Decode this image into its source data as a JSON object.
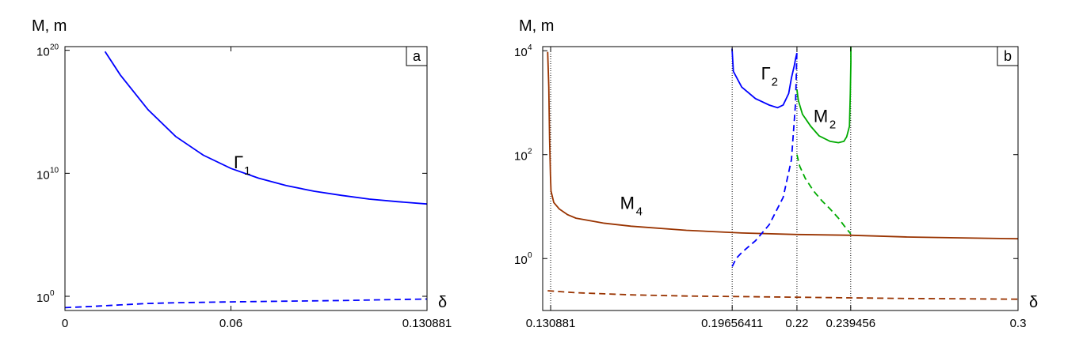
{
  "chart_data": [
    {
      "panel": "a",
      "type": "line",
      "y_scale": "log",
      "ylabel": "M, m",
      "xlabel": "δ",
      "xlim": [
        0,
        0.130881
      ],
      "ylim": [
        0.07,
        2e+20
      ],
      "x_ticks": [
        {
          "value": 0,
          "label": "0"
        },
        {
          "value": 0.06,
          "label": "0.06"
        },
        {
          "value": 0.130881,
          "label": "0.130881"
        }
      ],
      "y_ticks": [
        {
          "value": 1,
          "base": "10",
          "exp": "0"
        },
        {
          "value": 10000000000.0,
          "base": "10",
          "exp": "10"
        },
        {
          "value": 1e+20,
          "base": "10",
          "exp": "20"
        }
      ],
      "series": [
        {
          "label": "Γ",
          "sub": "1",
          "color": "#0000ff",
          "style": "solid",
          "x": [
            0.0145,
            0.02,
            0.03,
            0.04,
            0.05,
            0.06,
            0.07,
            0.08,
            0.09,
            0.1,
            0.11,
            0.12,
            0.130881
          ],
          "y": [
            8e+19,
            1e+18,
            1500000000000000.0,
            10000000000000.0,
            300000000000.0,
            25000000000.0,
            4000000000.0,
            1000000000.0,
            350000000.0,
            160000000.0,
            80000000.0,
            50000000.0,
            32000000.0
          ]
        },
        {
          "label": "",
          "sub": "",
          "color": "#0000ff",
          "style": "dashed",
          "x": [
            0,
            0.01,
            0.02,
            0.03,
            0.04,
            0.06,
            0.08,
            0.1,
            0.12,
            0.130881
          ],
          "y": [
            0.12,
            0.15,
            0.2,
            0.26,
            0.3,
            0.35,
            0.4,
            0.45,
            0.55,
            0.6
          ]
        }
      ],
      "labels_at": [
        {
          "text": "Γ",
          "sub": "1",
          "x": 0.061,
          "y": 25000000000.0
        }
      ]
    },
    {
      "panel": "b",
      "type": "line",
      "y_scale": "log",
      "ylabel": "M, m",
      "xlabel": "δ",
      "xlim": [
        0.128,
        0.3
      ],
      "ylim": [
        0.1,
        12000
      ],
      "x_ticks": [
        {
          "value": 0.130881,
          "label": "0.130881"
        },
        {
          "value": 0.19656411,
          "label": "0.19656411"
        },
        {
          "value": 0.22,
          "label": "0.22"
        },
        {
          "value": 0.239456,
          "label": "0.239456"
        },
        {
          "value": 0.3,
          "label": "0.3"
        }
      ],
      "y_ticks": [
        {
          "value": 1,
          "base": "10",
          "exp": "0"
        },
        {
          "value": 100,
          "base": "10",
          "exp": "2"
        },
        {
          "value": 10000,
          "base": "10",
          "exp": "4"
        }
      ],
      "vlines": [
        0.130881,
        0.19656411,
        0.22,
        0.239456
      ],
      "series": [
        {
          "label": "M",
          "sub": "4",
          "color": "#993300",
          "style": "solid",
          "x": [
            0.1298,
            0.1302,
            0.1305,
            0.1308,
            0.131,
            0.132,
            0.134,
            0.137,
            0.14,
            0.15,
            0.16,
            0.18,
            0.2,
            0.22,
            0.24,
            0.26,
            0.28,
            0.3
          ],
          "y": [
            9500,
            2000,
            200,
            40,
            20,
            12,
            9,
            7,
            6,
            4.8,
            4.2,
            3.5,
            3.1,
            2.9,
            2.8,
            2.6,
            2.5,
            2.4
          ]
        },
        {
          "label": "",
          "sub": "",
          "color": "#993300",
          "style": "dashed",
          "x": [
            0.1298,
            0.14,
            0.16,
            0.18,
            0.2,
            0.22,
            0.24,
            0.26,
            0.28,
            0.3
          ],
          "y": [
            0.24,
            0.22,
            0.2,
            0.19,
            0.185,
            0.18,
            0.175,
            0.17,
            0.168,
            0.165
          ]
        },
        {
          "label": "Γ",
          "sub": "2",
          "color": "#0000ff",
          "style": "solid",
          "x": [
            0.1965,
            0.197,
            0.2,
            0.205,
            0.21,
            0.213,
            0.215,
            0.217,
            0.218,
            0.219,
            0.2195,
            0.22
          ],
          "y": [
            11000,
            4000,
            2000,
            1200,
            900,
            800,
            900,
            1500,
            3000,
            5000,
            7000,
            9000
          ]
        },
        {
          "label": "",
          "sub": "",
          "color": "#0000ff",
          "style": "dashed",
          "x": [
            0.19656411,
            0.198,
            0.2,
            0.205,
            0.21,
            0.215,
            0.218,
            0.2195,
            0.22
          ],
          "y": [
            0.7,
            1.0,
            1.3,
            2.2,
            4.5,
            15,
            80,
            1000,
            10000
          ]
        },
        {
          "label": "M",
          "sub": "2",
          "color": "#00aa00",
          "style": "solid",
          "x": [
            0.22,
            0.2205,
            0.222,
            0.225,
            0.228,
            0.232,
            0.235,
            0.237,
            0.238,
            0.239,
            0.2393,
            0.2395,
            0.2395
          ],
          "y": [
            1800,
            1100,
            600,
            350,
            230,
            180,
            170,
            180,
            220,
            350,
            1500,
            6000,
            12000
          ]
        },
        {
          "label": "",
          "sub": "",
          "color": "#00aa00",
          "style": "dashed",
          "x": [
            0.22,
            0.221,
            0.223,
            0.226,
            0.229,
            0.232,
            0.235,
            0.2375,
            0.239456
          ],
          "y": [
            100,
            60,
            35,
            20,
            13,
            9,
            6,
            4,
            3
          ]
        }
      ],
      "labels_at": [
        {
          "text": "Γ",
          "sub": "2",
          "x": 0.207,
          "y": 2800
        },
        {
          "text": "M",
          "sub": "2",
          "x": 0.226,
          "y": 420
        },
        {
          "text": "M",
          "sub": "4",
          "x": 0.156,
          "y": 9
        }
      ]
    }
  ],
  "panel_letters": [
    "a",
    "b"
  ]
}
